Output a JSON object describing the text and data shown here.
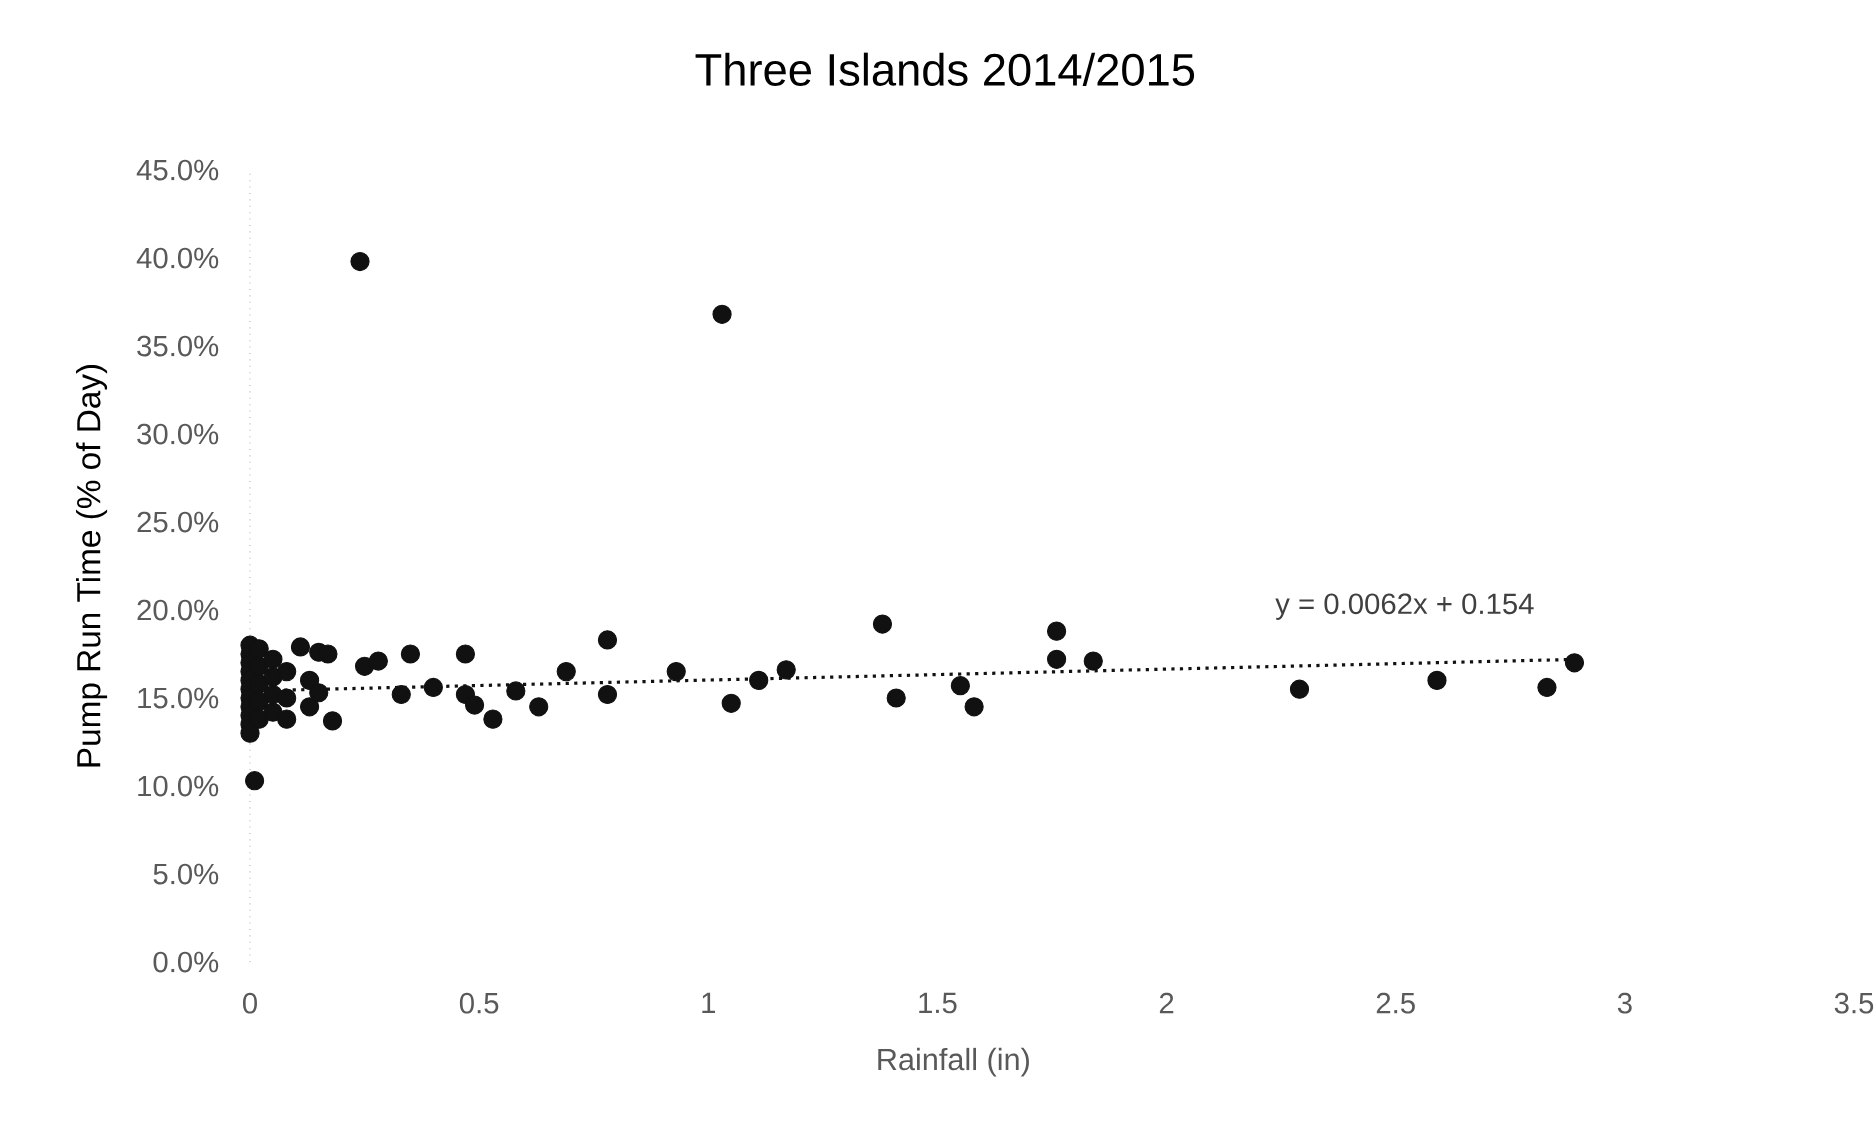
{
  "chart_data": {
    "type": "scatter",
    "title": "Three Islands 2014/2015",
    "xlabel": "Rainfall (in)",
    "ylabel": "Pump Run Time (% of Day)",
    "xlim": [
      0,
      3.5
    ],
    "xticks": [
      0,
      0.5,
      1,
      1.5,
      2,
      2.5,
      3,
      3.5
    ],
    "ylim": [
      0,
      0.45
    ],
    "yticks": [
      {
        "value": 0,
        "label": "0.0%"
      },
      {
        "value": 0.05,
        "label": "5.0%"
      },
      {
        "value": 0.1,
        "label": "10.0%"
      },
      {
        "value": 0.15,
        "label": "15.0%"
      },
      {
        "value": 0.2,
        "label": "20.0%"
      },
      {
        "value": 0.25,
        "label": "25.0%"
      },
      {
        "value": 0.3,
        "label": "30.0%"
      },
      {
        "value": 0.35,
        "label": "35.0%"
      },
      {
        "value": 0.4,
        "label": "40.0%"
      },
      {
        "value": 0.45,
        "label": "45.0%"
      }
    ],
    "grid": false,
    "annotations": [
      "y = 0.0062x + 0.154"
    ],
    "series": [
      {
        "color": "#111111",
        "marker": "circle",
        "x": [
          0,
          0,
          0,
          0,
          0,
          0,
          0,
          0,
          0,
          0,
          0,
          0.01,
          0.02,
          0.02,
          0.02,
          0.02,
          0.02,
          0.05,
          0.05,
          0.05,
          0.05,
          0.08,
          0.08,
          0.08,
          0.11,
          0.13,
          0.13,
          0.15,
          0.15,
          0.17,
          0.18,
          0.24,
          0.25,
          0.28,
          0.33,
          0.35,
          0.4,
          0.47,
          0.47,
          0.49,
          0.53,
          0.58,
          0.63,
          0.69,
          0.78,
          0.78,
          0.93,
          1.03,
          1.05,
          1.11,
          1.17,
          1.38,
          1.41,
          1.55,
          1.58,
          1.76,
          1.76,
          1.84,
          2.29,
          2.59,
          2.83,
          2.89
        ],
        "values": [
          0.18,
          0.175,
          0.17,
          0.165,
          0.16,
          0.155,
          0.15,
          0.145,
          0.14,
          0.135,
          0.13,
          0.103,
          0.178,
          0.168,
          0.158,
          0.148,
          0.138,
          0.172,
          0.162,
          0.152,
          0.142,
          0.165,
          0.15,
          0.138,
          0.179,
          0.16,
          0.145,
          0.176,
          0.153,
          0.175,
          0.137,
          0.398,
          0.168,
          0.171,
          0.152,
          0.175,
          0.156,
          0.175,
          0.152,
          0.146,
          0.138,
          0.154,
          0.145,
          0.165,
          0.183,
          0.152,
          0.165,
          0.368,
          0.147,
          0.16,
          0.166,
          0.192,
          0.15,
          0.157,
          0.145,
          0.188,
          0.172,
          0.171,
          0.155,
          0.16,
          0.156,
          0.17
        ]
      },
      {
        "type": "line",
        "color": "#111111",
        "line_style": "dotted",
        "marker": "none",
        "x": [
          0,
          2.9
        ],
        "values": [
          0.154,
          0.172
        ]
      }
    ]
  }
}
